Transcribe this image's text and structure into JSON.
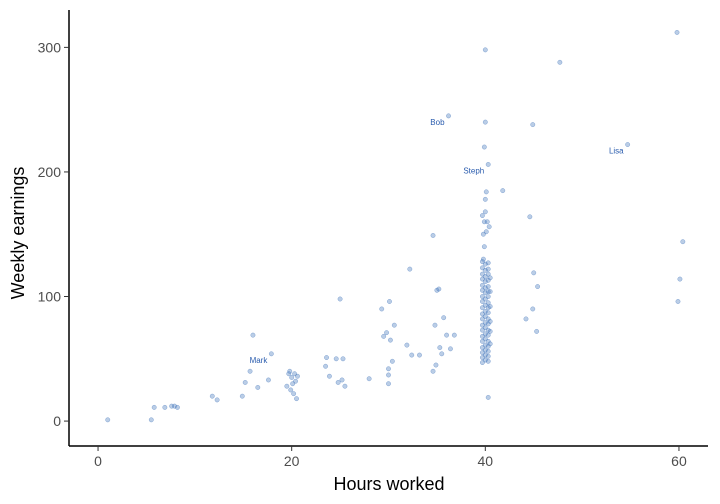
{
  "chart_data": {
    "type": "scatter",
    "title": "",
    "xlabel": "Hours worked",
    "ylabel": "Weekly earnings",
    "xlim": [
      -3,
      63
    ],
    "ylim": [
      -20,
      330
    ],
    "x_ticks": [
      {
        "value": 0,
        "label": "0"
      },
      {
        "value": 20,
        "label": "20"
      },
      {
        "value": 40,
        "label": "40"
      },
      {
        "value": 60,
        "label": "60"
      }
    ],
    "y_ticks": [
      {
        "value": 0,
        "label": "0"
      },
      {
        "value": 100,
        "label": "100"
      },
      {
        "value": 200,
        "label": "200"
      },
      {
        "value": 300,
        "label": "300"
      }
    ],
    "grid": false,
    "point_color": "#3a6fb8",
    "label_color": "#2a5cae",
    "points": [
      {
        "x": 1,
        "y": 1
      },
      {
        "x": 5.5,
        "y": 1
      },
      {
        "x": 5.8,
        "y": 11
      },
      {
        "x": 6.9,
        "y": 11
      },
      {
        "x": 7.6,
        "y": 12
      },
      {
        "x": 7.9,
        "y": 12
      },
      {
        "x": 8.2,
        "y": 11
      },
      {
        "x": 11.8,
        "y": 20
      },
      {
        "x": 12.3,
        "y": 17
      },
      {
        "x": 14.9,
        "y": 20
      },
      {
        "x": 15.2,
        "y": 31
      },
      {
        "x": 15.7,
        "y": 40
      },
      {
        "x": 16,
        "y": 69
      },
      {
        "x": 16.5,
        "y": 27
      },
      {
        "x": 17.6,
        "y": 33
      },
      {
        "x": 17.9,
        "y": 54
      },
      {
        "x": 19.5,
        "y": 28
      },
      {
        "x": 19.7,
        "y": 38
      },
      {
        "x": 19.8,
        "y": 40
      },
      {
        "x": 19.9,
        "y": 25
      },
      {
        "x": 20,
        "y": 35
      },
      {
        "x": 20.1,
        "y": 30
      },
      {
        "x": 20.2,
        "y": 22
      },
      {
        "x": 20.3,
        "y": 38
      },
      {
        "x": 20.4,
        "y": 32
      },
      {
        "x": 20.5,
        "y": 18
      },
      {
        "x": 20.6,
        "y": 36
      },
      {
        "x": 23.5,
        "y": 44
      },
      {
        "x": 23.6,
        "y": 51
      },
      {
        "x": 23.9,
        "y": 36
      },
      {
        "x": 24.6,
        "y": 50
      },
      {
        "x": 24.8,
        "y": 31
      },
      {
        "x": 25,
        "y": 98
      },
      {
        "x": 25.2,
        "y": 33
      },
      {
        "x": 25.3,
        "y": 50
      },
      {
        "x": 25.5,
        "y": 28
      },
      {
        "x": 28,
        "y": 34
      },
      {
        "x": 29.3,
        "y": 90
      },
      {
        "x": 29.5,
        "y": 68
      },
      {
        "x": 29.8,
        "y": 71
      },
      {
        "x": 30,
        "y": 30
      },
      {
        "x": 30,
        "y": 37
      },
      {
        "x": 30,
        "y": 42
      },
      {
        "x": 30.1,
        "y": 96
      },
      {
        "x": 30.2,
        "y": 65
      },
      {
        "x": 30.4,
        "y": 48
      },
      {
        "x": 30.6,
        "y": 77
      },
      {
        "x": 31.9,
        "y": 61
      },
      {
        "x": 32.2,
        "y": 122
      },
      {
        "x": 32.4,
        "y": 53
      },
      {
        "x": 33.2,
        "y": 53
      },
      {
        "x": 34.6,
        "y": 149
      },
      {
        "x": 34.6,
        "y": 40
      },
      {
        "x": 34.8,
        "y": 77
      },
      {
        "x": 34.9,
        "y": 45
      },
      {
        "x": 35,
        "y": 105
      },
      {
        "x": 35.2,
        "y": 106
      },
      {
        "x": 35.3,
        "y": 59
      },
      {
        "x": 35.5,
        "y": 54
      },
      {
        "x": 35.7,
        "y": 83
      },
      {
        "x": 36,
        "y": 69
      },
      {
        "x": 36.2,
        "y": 245
      },
      {
        "x": 36.4,
        "y": 58
      },
      {
        "x": 36.8,
        "y": 69
      },
      {
        "x": 39.7,
        "y": 47
      },
      {
        "x": 39.7,
        "y": 51
      },
      {
        "x": 39.7,
        "y": 55
      },
      {
        "x": 39.7,
        "y": 59
      },
      {
        "x": 39.7,
        "y": 64
      },
      {
        "x": 39.7,
        "y": 68
      },
      {
        "x": 39.7,
        "y": 73
      },
      {
        "x": 39.7,
        "y": 77
      },
      {
        "x": 39.7,
        "y": 82
      },
      {
        "x": 39.7,
        "y": 86
      },
      {
        "x": 39.7,
        "y": 91
      },
      {
        "x": 39.7,
        "y": 96
      },
      {
        "x": 39.7,
        "y": 100
      },
      {
        "x": 39.7,
        "y": 105
      },
      {
        "x": 39.7,
        "y": 109
      },
      {
        "x": 39.7,
        "y": 114
      },
      {
        "x": 39.7,
        "y": 118
      },
      {
        "x": 39.7,
        "y": 123
      },
      {
        "x": 39.7,
        "y": 128
      },
      {
        "x": 40.0,
        "y": 49
      },
      {
        "x": 40.0,
        "y": 53
      },
      {
        "x": 40.0,
        "y": 57
      },
      {
        "x": 40.0,
        "y": 61
      },
      {
        "x": 40.0,
        "y": 66
      },
      {
        "x": 40.0,
        "y": 70
      },
      {
        "x": 40.0,
        "y": 75
      },
      {
        "x": 40.0,
        "y": 79
      },
      {
        "x": 40.0,
        "y": 84
      },
      {
        "x": 40.0,
        "y": 88
      },
      {
        "x": 40.0,
        "y": 93
      },
      {
        "x": 40.0,
        "y": 98
      },
      {
        "x": 40.0,
        "y": 103
      },
      {
        "x": 40.0,
        "y": 107
      },
      {
        "x": 40.0,
        "y": 112
      },
      {
        "x": 40.0,
        "y": 116
      },
      {
        "x": 40.0,
        "y": 121
      },
      {
        "x": 40.0,
        "y": 126
      },
      {
        "x": 40.3,
        "y": 48
      },
      {
        "x": 40.3,
        "y": 52
      },
      {
        "x": 40.3,
        "y": 56
      },
      {
        "x": 40.3,
        "y": 60
      },
      {
        "x": 40.3,
        "y": 64
      },
      {
        "x": 40.3,
        "y": 69
      },
      {
        "x": 40.3,
        "y": 73
      },
      {
        "x": 40.3,
        "y": 78
      },
      {
        "x": 40.3,
        "y": 82
      },
      {
        "x": 40.3,
        "y": 87
      },
      {
        "x": 40.3,
        "y": 91
      },
      {
        "x": 40.3,
        "y": 95
      },
      {
        "x": 40.3,
        "y": 100
      },
      {
        "x": 40.3,
        "y": 104
      },
      {
        "x": 40.3,
        "y": 108
      },
      {
        "x": 40.3,
        "y": 113
      },
      {
        "x": 40.3,
        "y": 118
      },
      {
        "x": 40.3,
        "y": 122
      },
      {
        "x": 40.3,
        "y": 127
      },
      {
        "x": 40.5,
        "y": 62
      },
      {
        "x": 40.5,
        "y": 72
      },
      {
        "x": 40.5,
        "y": 80
      },
      {
        "x": 40.5,
        "y": 92
      },
      {
        "x": 40.5,
        "y": 104
      },
      {
        "x": 40.5,
        "y": 115
      },
      {
        "x": 39.8,
        "y": 130
      },
      {
        "x": 39.9,
        "y": 140
      },
      {
        "x": 39.8,
        "y": 150
      },
      {
        "x": 39.9,
        "y": 160
      },
      {
        "x": 39.7,
        "y": 165
      },
      {
        "x": 40.0,
        "y": 168
      },
      {
        "x": 40.2,
        "y": 160
      },
      {
        "x": 40.4,
        "y": 156
      },
      {
        "x": 40.1,
        "y": 152
      },
      {
        "x": 40.0,
        "y": 178
      },
      {
        "x": 40.1,
        "y": 184
      },
      {
        "x": 40.3,
        "y": 206
      },
      {
        "x": 39.9,
        "y": 220
      },
      {
        "x": 40.0,
        "y": 240
      },
      {
        "x": 40.0,
        "y": 298
      },
      {
        "x": 40.3,
        "y": 19
      },
      {
        "x": 41.8,
        "y": 185
      },
      {
        "x": 44.2,
        "y": 82
      },
      {
        "x": 44.6,
        "y": 164
      },
      {
        "x": 44.9,
        "y": 238
      },
      {
        "x": 44.9,
        "y": 90
      },
      {
        "x": 45.0,
        "y": 119
      },
      {
        "x": 45.3,
        "y": 72
      },
      {
        "x": 45.4,
        "y": 108
      },
      {
        "x": 47.7,
        "y": 288
      },
      {
        "x": 54.7,
        "y": 222
      },
      {
        "x": 59.8,
        "y": 312
      },
      {
        "x": 59.9,
        "y": 96
      },
      {
        "x": 60.1,
        "y": 114
      },
      {
        "x": 60.4,
        "y": 144
      }
    ],
    "annotations": [
      {
        "text": "Bob",
        "x": 36.2,
        "y": 245
      },
      {
        "text": "Steph",
        "x": 40.3,
        "y": 206
      },
      {
        "text": "Lisa",
        "x": 54.7,
        "y": 222
      },
      {
        "text": "Mark",
        "x": 17.9,
        "y": 54
      }
    ]
  }
}
